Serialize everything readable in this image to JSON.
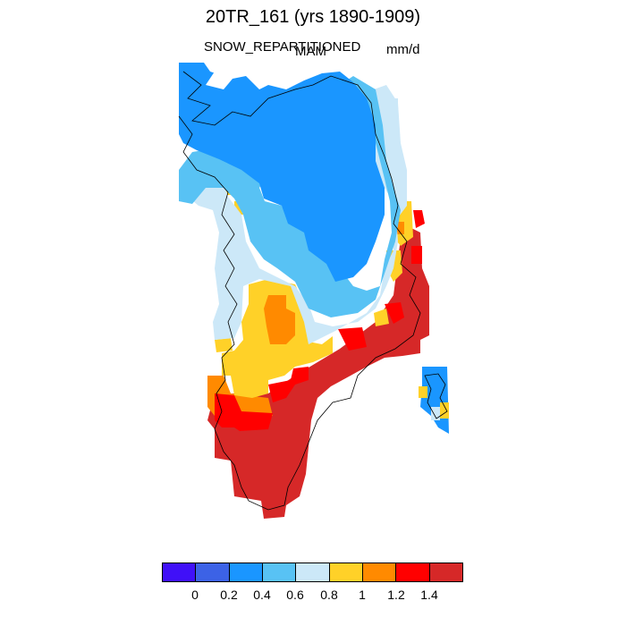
{
  "title": "20TR_161 (yrs 1890-1909)",
  "variable": "SNOW_REPARTITIONED",
  "season": "MAM",
  "units": "mm/d",
  "colorbar": {
    "colors": [
      "#4010f8",
      "#3c62e6",
      "#1a96ff",
      "#58c2f4",
      "#cce8f8",
      "#ffd128",
      "#ff8a00",
      "#ff0000",
      "#d62828"
    ],
    "labels": [
      "0",
      "0.2",
      "0.4",
      "0.6",
      "0.8",
      "1",
      "1.2",
      "1.4"
    ]
  }
}
